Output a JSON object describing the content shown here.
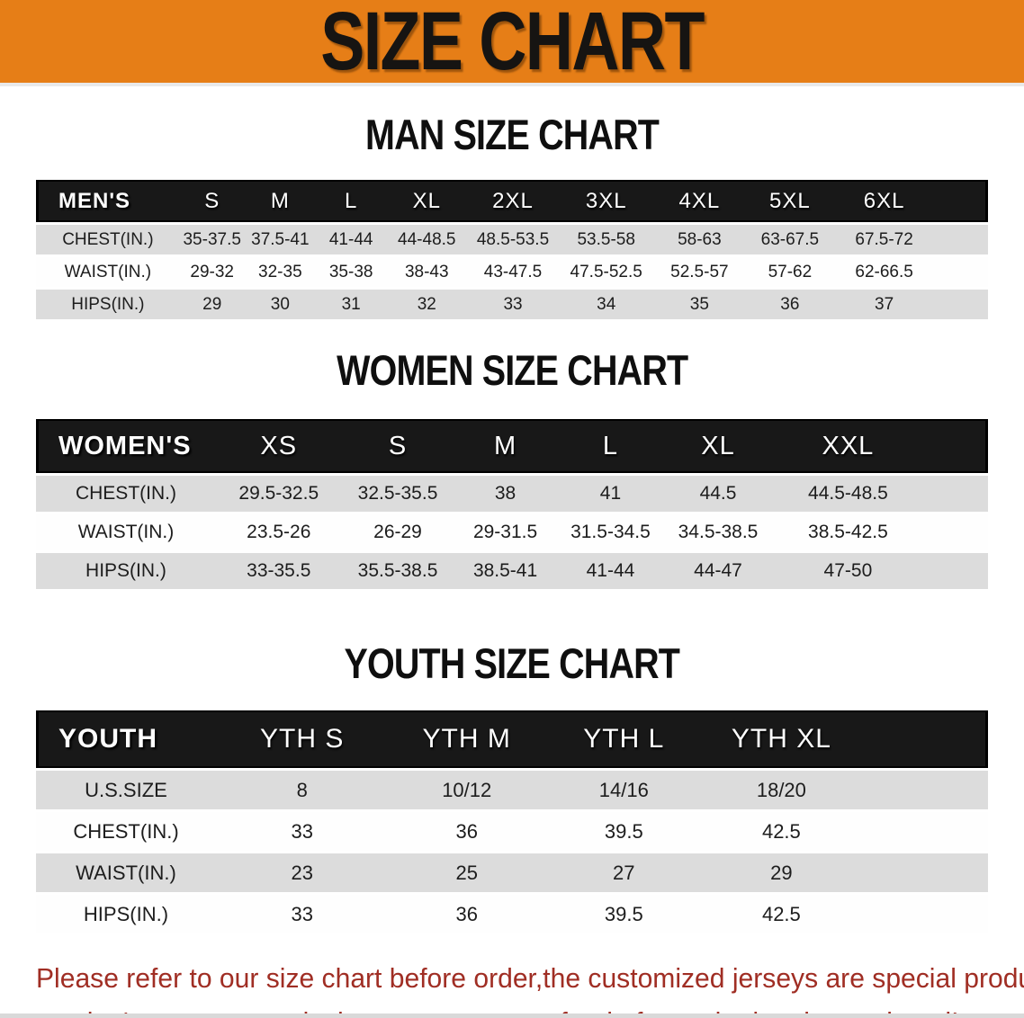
{
  "banner": {
    "title": "SIZE CHART",
    "bg_color": "#E67E17",
    "text_color": "#161412"
  },
  "colors": {
    "header_bar": "#181818",
    "stripe_gray": "#DCDCDC",
    "disclaimer_red": "#A02E24"
  },
  "sections": [
    {
      "key": "men",
      "heading": "MAN SIZE CHART",
      "table": {
        "corner_label": "MEN'S",
        "columns": [
          "S",
          "M",
          "L",
          "XL",
          "2XL",
          "3XL",
          "4XL",
          "5XL",
          "6XL"
        ],
        "rows": [
          {
            "label": "CHEST(IN.)",
            "values": [
              "35-37.5",
              "37.5-41",
              "41-44",
              "44-48.5",
              "48.5-53.5",
              "53.5-58",
              "58-63",
              "63-67.5",
              "67.5-72"
            ]
          },
          {
            "label": "WAIST(IN.)",
            "values": [
              "29-32",
              "32-35",
              "35-38",
              "38-43",
              "43-47.5",
              "47.5-52.5",
              "52.5-57",
              "57-62",
              "62-66.5"
            ]
          },
          {
            "label": "HIPS(IN.)",
            "values": [
              "29",
              "30",
              "31",
              "32",
              "33",
              "34",
              "35",
              "36",
              "37"
            ]
          }
        ]
      }
    },
    {
      "key": "women",
      "heading": "WOMEN SIZE CHART",
      "table": {
        "corner_label": "WOMEN'S",
        "columns": [
          "XS",
          "S",
          "M",
          "L",
          "XL",
          "XXL"
        ],
        "rows": [
          {
            "label": "CHEST(IN.)",
            "values": [
              "29.5-32.5",
              "32.5-35.5",
              "38",
              "41",
              "44.5",
              "44.5-48.5"
            ]
          },
          {
            "label": "WAIST(IN.)",
            "values": [
              "23.5-26",
              "26-29",
              "29-31.5",
              "31.5-34.5",
              "34.5-38.5",
              "38.5-42.5"
            ]
          },
          {
            "label": "HIPS(IN.)",
            "values": [
              "33-35.5",
              "35.5-38.5",
              "38.5-41",
              "41-44",
              "44-47",
              "47-50"
            ]
          }
        ]
      }
    },
    {
      "key": "youth",
      "heading": "YOUTH SIZE CHART",
      "table": {
        "corner_label": "YOUTH",
        "columns": [
          "YTH S",
          "YTH M",
          "YTH L",
          "YTH XL"
        ],
        "rows": [
          {
            "label": "U.S.SIZE",
            "values": [
              "8",
              "10/12",
              "14/16",
              "18/20"
            ]
          },
          {
            "label": "CHEST(IN.)",
            "values": [
              "33",
              "36",
              "39.5",
              "42.5"
            ]
          },
          {
            "label": "WAIST(IN.)",
            "values": [
              "23",
              "25",
              "27",
              "29"
            ]
          },
          {
            "label": "HIPS(IN.)",
            "values": [
              "33",
              "36",
              "39.5",
              "42.5"
            ]
          }
        ]
      }
    }
  ],
  "disclaimer": {
    "line1": "Please refer to our size chart before order,the customized jerseys are special products,",
    "line2": "we don't accept cancel, change, teturn or refund after order has been placed!"
  }
}
